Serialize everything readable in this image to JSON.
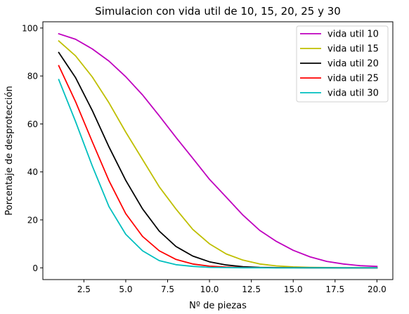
{
  "chart_data": {
    "type": "line",
    "title": "Simulacion con vida util de 10, 15, 20, 25 y 30",
    "xlabel": "Nº de piezas",
    "ylabel": "Porcentaje de desprotección",
    "xlim": [
      0.05,
      20.95
    ],
    "ylim": [
      -4.9,
      102.6
    ],
    "xticks": [
      2.5,
      5.0,
      7.5,
      10.0,
      12.5,
      15.0,
      17.5,
      20.0
    ],
    "xtick_labels": [
      "2.5",
      "5.0",
      "7.5",
      "10.0",
      "12.5",
      "15.0",
      "17.5",
      "20.0"
    ],
    "yticks": [
      0,
      20,
      40,
      60,
      80,
      100
    ],
    "ytick_labels": [
      "0",
      "20",
      "40",
      "60",
      "80",
      "100"
    ],
    "grid": false,
    "legend_position": "top-right",
    "x": [
      1,
      2,
      3,
      4,
      5,
      6,
      7,
      8,
      9,
      10,
      11,
      12,
      13,
      14,
      15,
      16,
      17,
      18,
      19,
      20
    ],
    "series": [
      {
        "name": "vida util 10",
        "color": "#bf00bf",
        "values": [
          97.6,
          95.3,
          91.3,
          86.2,
          79.7,
          72.1,
          63.4,
          54.4,
          45.7,
          36.9,
          29.5,
          22.0,
          15.6,
          11.0,
          7.3,
          4.6,
          2.7,
          1.6,
          0.9,
          0.6
        ]
      },
      {
        "name": "vida util 15",
        "color": "#bfbf00",
        "values": [
          94.6,
          88.4,
          79.6,
          68.8,
          56.6,
          45.2,
          33.8,
          24.5,
          16.0,
          10.0,
          5.8,
          3.2,
          1.6,
          0.8,
          0.4,
          0.2,
          0.1,
          0.05,
          0.02,
          0.01
        ]
      },
      {
        "name": "vida util 20",
        "color": "#000000",
        "values": [
          89.8,
          79.3,
          65.6,
          50.4,
          36.5,
          24.6,
          15.3,
          8.9,
          4.9,
          2.5,
          1.2,
          0.5,
          0.2,
          0.1,
          0.05,
          0.02,
          0.01,
          0.0,
          0.0,
          0.0
        ]
      },
      {
        "name": "vida util 25",
        "color": "#ff0000",
        "values": [
          84.3,
          69.3,
          52.6,
          36.3,
          22.6,
          13.1,
          7.1,
          3.5,
          1.6,
          0.7,
          0.3,
          0.1,
          0.05,
          0.02,
          0.01,
          0.0,
          0.0,
          0.0,
          0.0,
          0.0
        ]
      },
      {
        "name": "vida util 30",
        "color": "#00bfbf",
        "values": [
          78.5,
          61.0,
          42.5,
          25.5,
          14.0,
          7.1,
          3.0,
          1.3,
          0.6,
          0.2,
          0.1,
          0.03,
          0.01,
          0.0,
          0.0,
          0.0,
          0.0,
          0.0,
          0.0,
          0.0
        ]
      }
    ]
  }
}
